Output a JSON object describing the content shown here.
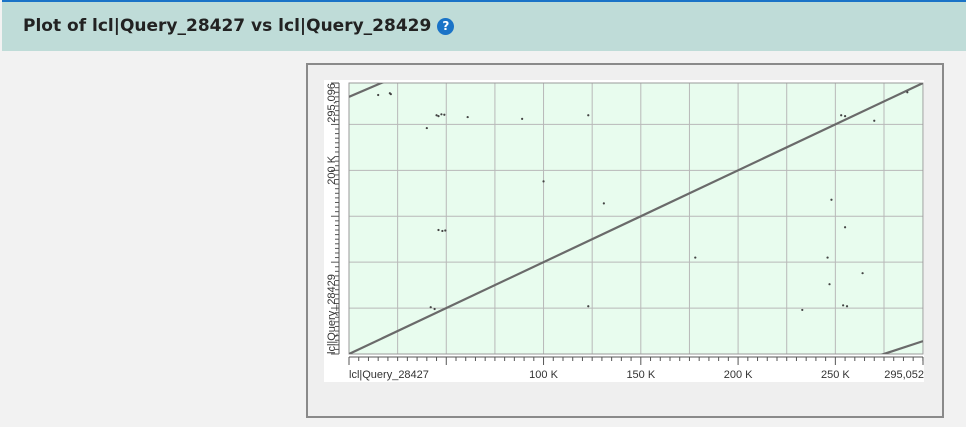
{
  "header": {
    "title": "Plot of lcl|Query_28427 vs lcl|Query_28429",
    "help_icon": "question-circle-icon"
  },
  "chart_data": {
    "type": "scatter",
    "title": "",
    "xlabel": "lcl|Query_28427",
    "ylabel": "lcl|Query_28429",
    "xlim": [
      0,
      295052
    ],
    "ylim": [
      0,
      295096
    ],
    "x_tick_labels": [
      {
        "value": 100000,
        "label": "100 K"
      },
      {
        "value": 150000,
        "label": "150 K"
      },
      {
        "value": 200000,
        "label": "200 K"
      },
      {
        "value": 250000,
        "label": "250 K"
      },
      {
        "value": 295052,
        "label": "295,052"
      }
    ],
    "y_tick_labels": [
      {
        "value": 200000,
        "label": "200 K"
      },
      {
        "value": 295096,
        "label": "295,096"
      }
    ],
    "grid": true,
    "colors": {
      "background": "#e8fcee",
      "grid": "#b8b8b8",
      "line": "#6a6a6a",
      "dots": "#444444"
    },
    "segments": [
      {
        "x": [
          0,
          295052
        ],
        "y": [
          0,
          295096
        ]
      },
      {
        "x": [
          0,
          22000
        ],
        "y": [
          280000,
          300000
        ]
      },
      {
        "x": [
          272000,
          295052
        ],
        "y": [
          -2000,
          14000
        ]
      }
    ],
    "points": [
      [
        15000,
        282000
      ],
      [
        21000,
        284000
      ],
      [
        21500,
        283000
      ],
      [
        45000,
        260000
      ],
      [
        46000,
        259000
      ],
      [
        47500,
        261000
      ],
      [
        49000,
        260500
      ],
      [
        61000,
        258000
      ],
      [
        89000,
        256000
      ],
      [
        123000,
        260000
      ],
      [
        40000,
        246000
      ],
      [
        100000,
        188000
      ],
      [
        131000,
        164000
      ],
      [
        46000,
        135000
      ],
      [
        48000,
        134000
      ],
      [
        49500,
        134500
      ],
      [
        178000,
        105000
      ],
      [
        123000,
        52000
      ],
      [
        42000,
        51000
      ],
      [
        44000,
        49000
      ],
      [
        233000,
        48000
      ],
      [
        248000,
        168000
      ],
      [
        255000,
        138000
      ],
      [
        246000,
        105000
      ],
      [
        247000,
        76000
      ],
      [
        254000,
        53000
      ],
      [
        256000,
        52000
      ],
      [
        264000,
        88000
      ],
      [
        253000,
        260000
      ],
      [
        255000,
        259000
      ],
      [
        270000,
        254000
      ],
      [
        287000,
        285000
      ]
    ]
  }
}
